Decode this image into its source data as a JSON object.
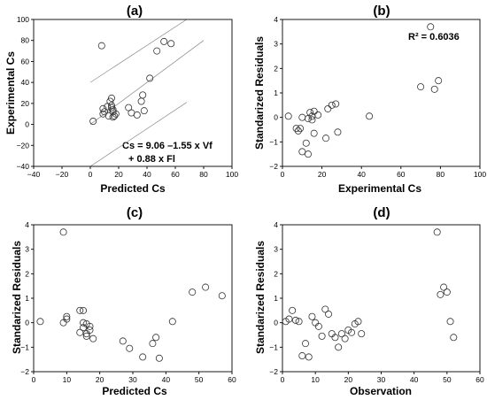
{
  "chart_data": [
    {
      "panel": "(a)",
      "type": "scatter",
      "xlabel": "Predicted Cs",
      "ylabel": "Experimental Cs",
      "xlim": [
        -40,
        100
      ],
      "ylim": [
        -40,
        100
      ],
      "xticks": [
        -40,
        -20,
        0,
        20,
        40,
        60,
        80,
        100
      ],
      "yticks": [
        -40,
        -20,
        0,
        20,
        40,
        60,
        80,
        100
      ],
      "equation_lines": [
        "Cs = 9.06 –1.55 x Vf",
        "+ 0.88 x Fl"
      ],
      "lines": [
        {
          "x": [
            0,
            68
          ],
          "y": [
            40,
            100
          ]
        },
        {
          "x": [
            0,
            80
          ],
          "y": [
            0,
            80
          ]
        },
        {
          "x": [
            0,
            68
          ],
          "y": [
            -40,
            21
          ]
        }
      ],
      "points": [
        [
          2,
          3
        ],
        [
          8,
          75
        ],
        [
          9,
          15
        ],
        [
          9,
          10
        ],
        [
          10,
          12
        ],
        [
          12,
          17
        ],
        [
          13,
          8
        ],
        [
          14,
          22
        ],
        [
          15,
          25
        ],
        [
          15,
          18
        ],
        [
          15,
          16
        ],
        [
          16,
          12
        ],
        [
          16,
          7
        ],
        [
          17,
          8
        ],
        [
          16,
          14
        ],
        [
          18,
          10
        ],
        [
          27,
          16
        ],
        [
          29,
          11
        ],
        [
          33,
          9
        ],
        [
          36,
          22
        ],
        [
          37,
          28
        ],
        [
          38,
          13
        ],
        [
          42,
          44
        ],
        [
          47,
          70
        ],
        [
          52,
          79
        ],
        [
          57,
          77
        ]
      ]
    },
    {
      "panel": "(b)",
      "type": "scatter",
      "xlabel": "Experimental Cs",
      "ylabel": "Standarized Residuals",
      "xlim": [
        0,
        100
      ],
      "ylim": [
        -2,
        4
      ],
      "xticks": [
        0,
        20,
        40,
        60,
        80,
        100
      ],
      "yticks": [
        -2,
        -1,
        0,
        1,
        2,
        3,
        4
      ],
      "annotation": "R² = 0.6036",
      "points": [
        [
          3,
          0.05
        ],
        [
          7,
          -0.45
        ],
        [
          8,
          -0.55
        ],
        [
          9,
          -0.45
        ],
        [
          10,
          0.0
        ],
        [
          10,
          -1.4
        ],
        [
          12,
          -1.05
        ],
        [
          13,
          -0.05
        ],
        [
          13,
          -1.5
        ],
        [
          14,
          0.2
        ],
        [
          15,
          -0.1
        ],
        [
          15,
          0.05
        ],
        [
          16,
          0.25
        ],
        [
          16,
          -0.65
        ],
        [
          18,
          0.1
        ],
        [
          22,
          -0.85
        ],
        [
          23,
          0.35
        ],
        [
          25,
          0.5
        ],
        [
          27,
          0.55
        ],
        [
          28,
          -0.6
        ],
        [
          44,
          0.05
        ],
        [
          70,
          1.25
        ],
        [
          75,
          3.7
        ],
        [
          77,
          1.15
        ],
        [
          79,
          1.5
        ]
      ]
    },
    {
      "panel": "(c)",
      "type": "scatter",
      "xlabel": "Predicted Cs",
      "ylabel": "Standarized Residuals",
      "xlim": [
        0,
        60
      ],
      "ylim": [
        -2,
        4
      ],
      "xticks": [
        0,
        10,
        20,
        30,
        40,
        50,
        60
      ],
      "yticks": [
        -2,
        -1,
        0,
        1,
        2,
        3,
        4
      ],
      "points": [
        [
          2,
          0.05
        ],
        [
          9,
          3.7
        ],
        [
          9,
          0.0
        ],
        [
          10,
          0.25
        ],
        [
          10,
          0.15
        ],
        [
          14,
          -0.4
        ],
        [
          14,
          0.5
        ],
        [
          15,
          0.5
        ],
        [
          15,
          0.0
        ],
        [
          15,
          -0.2
        ],
        [
          16,
          -0.05
        ],
        [
          16,
          -0.45
        ],
        [
          16,
          -0.55
        ],
        [
          17,
          -0.3
        ],
        [
          17,
          -0.15
        ],
        [
          18,
          -0.65
        ],
        [
          27,
          -0.75
        ],
        [
          29,
          -1.05
        ],
        [
          33,
          -1.4
        ],
        [
          36,
          -0.85
        ],
        [
          37,
          -0.6
        ],
        [
          38,
          -1.45
        ],
        [
          42,
          0.05
        ],
        [
          48,
          1.25
        ],
        [
          52,
          1.45
        ],
        [
          57,
          1.1
        ]
      ]
    },
    {
      "panel": "(d)",
      "type": "scatter",
      "xlabel": "Observation",
      "ylabel": "Standarized Residuals",
      "xlim": [
        0,
        60
      ],
      "ylim": [
        -2,
        4
      ],
      "xticks": [
        0,
        10,
        20,
        30,
        40,
        50,
        60
      ],
      "yticks": [
        -2,
        -1,
        0,
        1,
        2,
        3,
        4
      ],
      "points": [
        [
          1,
          0.05
        ],
        [
          2,
          0.15
        ],
        [
          3,
          0.5
        ],
        [
          4,
          0.1
        ],
        [
          5,
          0.05
        ],
        [
          6,
          -1.35
        ],
        [
          7,
          -0.85
        ],
        [
          8,
          -1.4
        ],
        [
          9,
          0.25
        ],
        [
          10,
          0.0
        ],
        [
          11,
          -0.15
        ],
        [
          12,
          -0.55
        ],
        [
          13,
          0.55
        ],
        [
          14,
          0.35
        ],
        [
          15,
          -0.45
        ],
        [
          16,
          -0.6
        ],
        [
          17,
          -1.0
        ],
        [
          18,
          -0.45
        ],
        [
          19,
          -0.65
        ],
        [
          20,
          -0.3
        ],
        [
          21,
          -0.4
        ],
        [
          22,
          -0.05
        ],
        [
          23,
          0.05
        ],
        [
          24,
          -0.45
        ],
        [
          47,
          3.7
        ],
        [
          48,
          1.15
        ],
        [
          49,
          1.45
        ],
        [
          50,
          1.25
        ],
        [
          51,
          0.05
        ],
        [
          52,
          -0.6
        ]
      ]
    }
  ]
}
